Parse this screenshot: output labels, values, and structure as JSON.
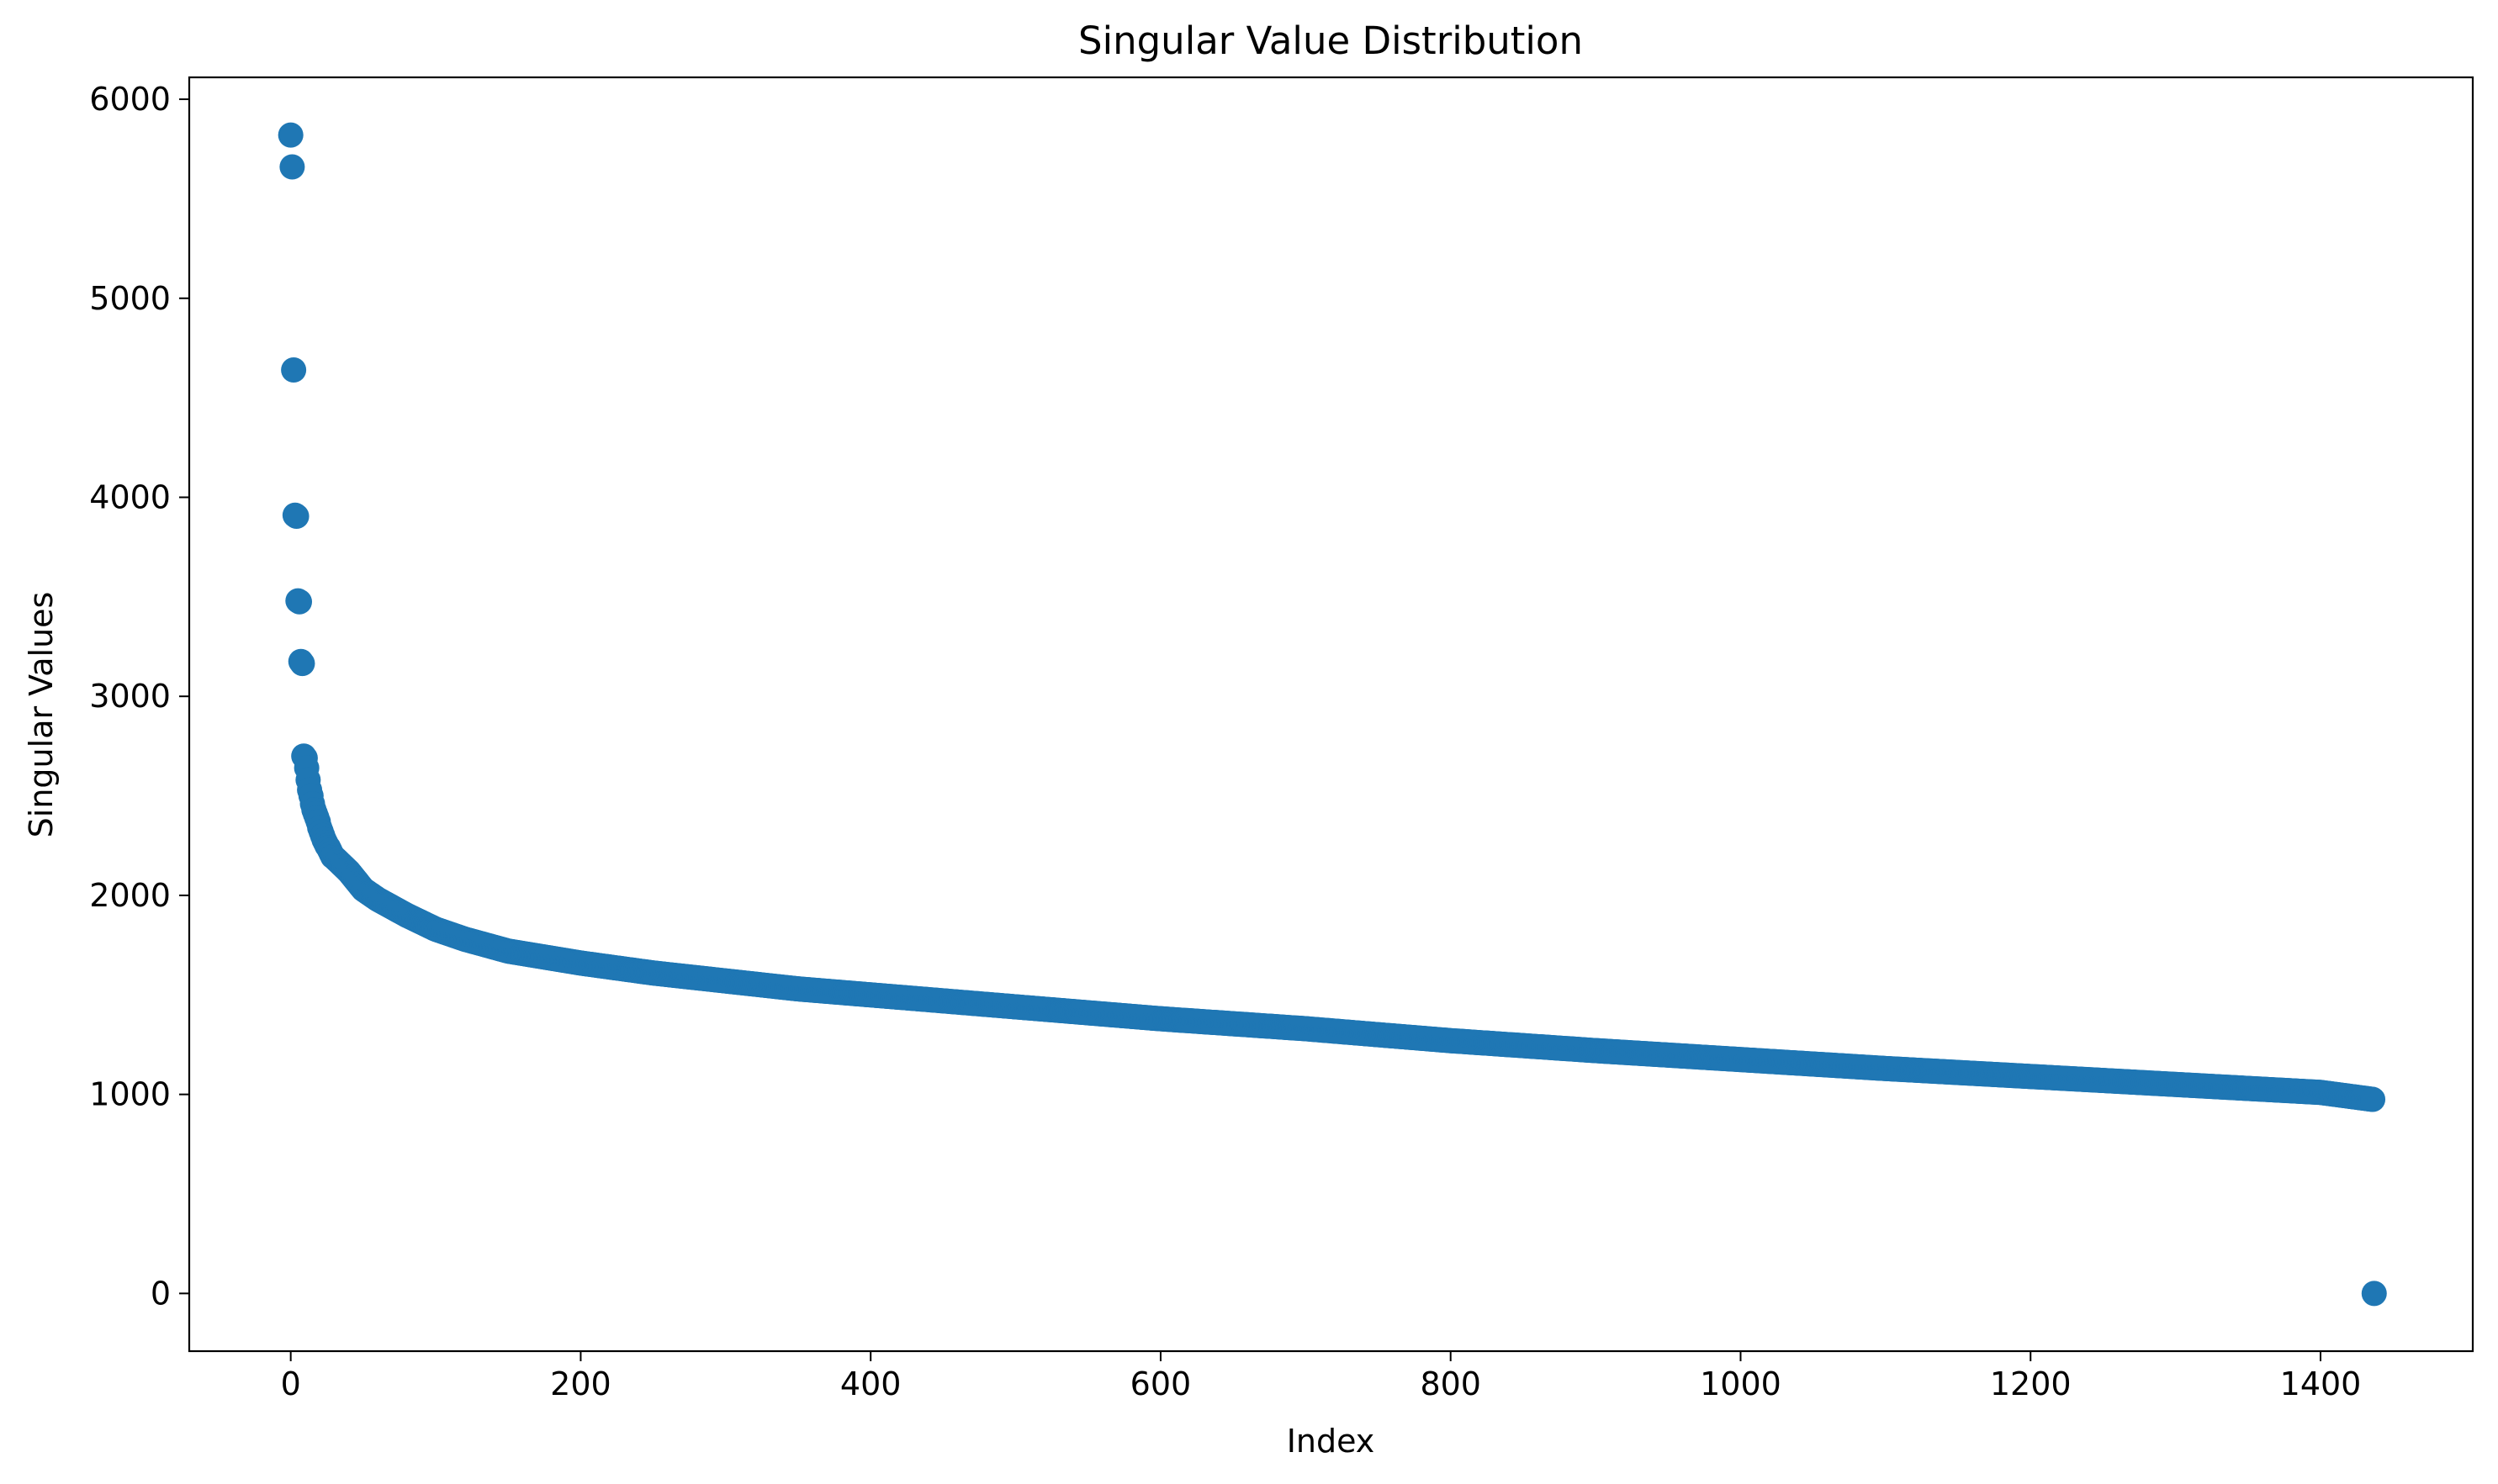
{
  "chart_data": {
    "type": "scatter",
    "title": "Singular Value Distribution",
    "xlabel": "Index",
    "ylabel": "Singular Values",
    "xlim": [
      -70,
      1505
    ],
    "ylim": [
      -290,
      6110
    ],
    "xticks": [
      0,
      200,
      400,
      600,
      800,
      1000,
      1200,
      1400
    ],
    "yticks": [
      0,
      1000,
      2000,
      3000,
      4000,
      5000,
      6000
    ],
    "xtick_labels": [
      "0",
      "200",
      "400",
      "600",
      "800",
      "1000",
      "1200",
      "1400"
    ],
    "ytick_labels": [
      "0",
      "1000",
      "2000",
      "3000",
      "4000",
      "5000",
      "6000"
    ],
    "grid": false,
    "legend": null,
    "color": "#1f77b4",
    "points_total": 1438,
    "points": [
      [
        0,
        5820
      ],
      [
        1,
        5660
      ],
      [
        2,
        4640
      ],
      [
        3,
        3910
      ],
      [
        4,
        3905
      ],
      [
        5,
        3480
      ],
      [
        6,
        3475
      ],
      [
        7,
        3175
      ],
      [
        8,
        3165
      ],
      [
        9,
        2700
      ],
      [
        10,
        2690
      ],
      [
        11,
        2640
      ],
      [
        12,
        2580
      ],
      [
        13,
        2530
      ],
      [
        14,
        2500
      ],
      [
        15,
        2460
      ],
      [
        16,
        2430
      ],
      [
        17,
        2410
      ],
      [
        18,
        2390
      ],
      [
        19,
        2370
      ],
      [
        20,
        2340
      ],
      [
        21,
        2320
      ],
      [
        22,
        2300
      ],
      [
        23,
        2280
      ],
      [
        24,
        2265
      ],
      [
        25,
        2250
      ],
      [
        26,
        2240
      ],
      [
        27,
        2225
      ],
      [
        28,
        2210
      ],
      [
        29,
        2195
      ]
    ],
    "tail_curve": [
      [
        30,
        2190
      ],
      [
        40,
        2120
      ],
      [
        50,
        2030
      ],
      [
        60,
        1980
      ],
      [
        70,
        1940
      ],
      [
        80,
        1900
      ],
      [
        100,
        1830
      ],
      [
        120,
        1780
      ],
      [
        150,
        1720
      ],
      [
        200,
        1660
      ],
      [
        250,
        1610
      ],
      [
        300,
        1570
      ],
      [
        350,
        1530
      ],
      [
        400,
        1500
      ],
      [
        500,
        1440
      ],
      [
        600,
        1380
      ],
      [
        700,
        1330
      ],
      [
        800,
        1270
      ],
      [
        900,
        1220
      ],
      [
        1000,
        1175
      ],
      [
        1100,
        1130
      ],
      [
        1200,
        1090
      ],
      [
        1300,
        1050
      ],
      [
        1400,
        1010
      ],
      [
        1436,
        975
      ]
    ],
    "outliers": [
      [
        1437,
        0
      ]
    ]
  }
}
